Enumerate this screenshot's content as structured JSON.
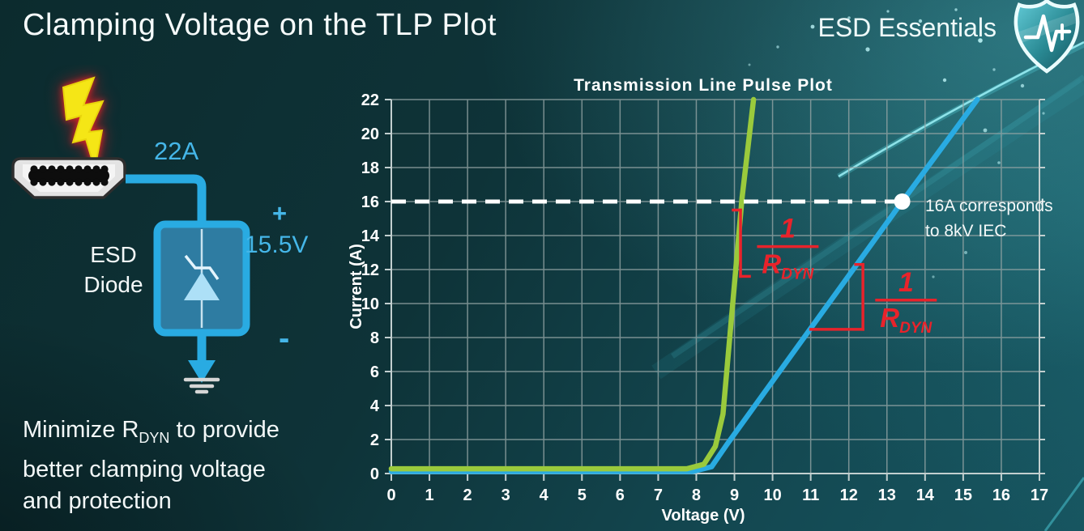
{
  "slide": {
    "title": "Clamping Voltage on the TLP Plot"
  },
  "brand": {
    "name": "ESD Essentials",
    "logo_icon": "shield-pulse-icon"
  },
  "circuit": {
    "surge_current": "22A",
    "device_name_line1": "ESD",
    "device_name_line2": "Diode",
    "polarity_plus": "+",
    "polarity_minus": "-",
    "clamping_voltage": "15.5V",
    "icons": [
      "lightning-bolt-icon",
      "hdmi-connector-icon",
      "tvs-diode-icon",
      "ground-icon"
    ],
    "accent_color": "#29ABE2"
  },
  "note": {
    "line1_prefix": "Minimize R",
    "line1_subscript": "DYN",
    "line1_suffix": " to provide",
    "line2": "better clamping voltage",
    "line3": "and protection"
  },
  "chart_data": {
    "type": "line",
    "title": "Transmission Line Pulse Plot",
    "xlabel": "Voltage (V)",
    "ylabel": "Current (A)",
    "xlim": [
      0,
      17
    ],
    "ylim": [
      0,
      22
    ],
    "xticks": [
      0,
      1,
      2,
      3,
      4,
      5,
      6,
      7,
      8,
      9,
      10,
      11,
      12,
      13,
      14,
      15,
      16,
      17
    ],
    "yticks": [
      0,
      2,
      4,
      6,
      8,
      10,
      12,
      14,
      16,
      18,
      20,
      22
    ],
    "grid": true,
    "legend": "none",
    "colors": {
      "grid": "#93A4A4",
      "axis_text": "#FFFFFF",
      "annotation_red": "#E8232B",
      "threshold_white": "#FFFFFF",
      "green_curve": "#9ACA3C",
      "blue_curve": "#29ABE2"
    },
    "series": [
      {
        "name": "blue-high-rdyn-curve",
        "color": "#29ABE2",
        "points": [
          [
            0,
            0.12
          ],
          [
            7.9,
            0.12
          ],
          [
            8.4,
            0.4
          ],
          [
            8.8,
            1.7
          ],
          [
            13.4,
            16
          ],
          [
            15.37,
            22
          ]
        ]
      },
      {
        "name": "green-low-rdyn-curve",
        "color": "#9ACA3C",
        "points": [
          [
            0,
            0.28
          ],
          [
            7.75,
            0.28
          ],
          [
            8.2,
            0.55
          ],
          [
            8.5,
            1.6
          ],
          [
            8.7,
            3.5
          ],
          [
            9.2,
            16.2
          ],
          [
            9.5,
            22
          ]
        ]
      }
    ],
    "threshold": {
      "y": 16,
      "x_start": 0,
      "x_end": 13.4,
      "style": "dashed",
      "label_line1": "16A corresponds",
      "label_line2": "to 8kV IEC"
    },
    "marker_point": {
      "x": 13.4,
      "y": 16
    },
    "slope_fractions": [
      {
        "numerator": "1",
        "denominator": "R",
        "denominator_sub": "DYN",
        "x": 10.4,
        "y": 13.35
      },
      {
        "numerator": "1",
        "denominator": "R",
        "denominator_sub": "DYN",
        "x": 13.5,
        "y": 10.2
      }
    ],
    "slope_markers": [
      {
        "shape": "vertical-with-ticks",
        "x": 9.16,
        "y_top": 15.5,
        "y_bottom": 11.6
      },
      {
        "shape": "right-angle",
        "x": 12.37,
        "y_top": 12.3,
        "y_corner": 8.48,
        "x_left": 11.0
      }
    ]
  }
}
